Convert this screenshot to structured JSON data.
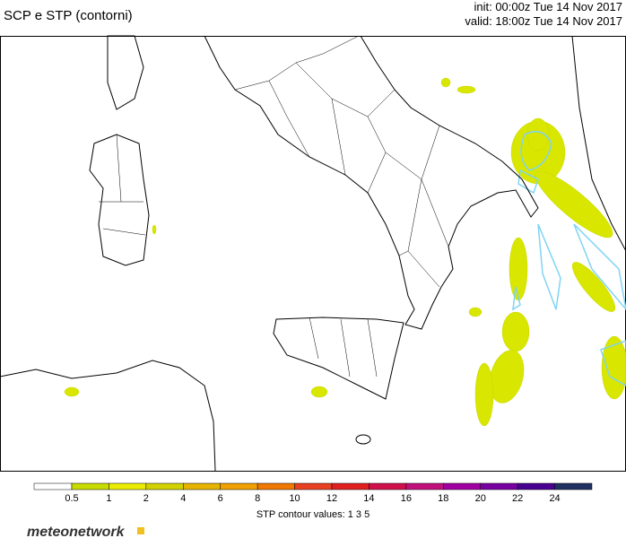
{
  "header": {
    "title": "SCP e STP (contorni)",
    "init": "init: 00:00z Tue 14 Nov 2017",
    "valid": "valid: 18:00z Tue 14 Nov 2017"
  },
  "legend": {
    "levels": [
      0.5,
      1,
      2,
      4,
      6,
      8,
      10,
      12,
      14,
      16,
      18,
      20,
      22,
      24
    ],
    "colors": [
      "#ffffff",
      "#c8dc00",
      "#ecec00",
      "#d2d200",
      "#e6b400",
      "#f0a000",
      "#f07800",
      "#e84020",
      "#e02020",
      "#d0104a",
      "#c0107a",
      "#a000a0",
      "#7800a0",
      "#480090",
      "#203060"
    ],
    "note": "STP contour values: 1 3 5"
  },
  "footer": {
    "logo": "meteonetwork"
  }
}
